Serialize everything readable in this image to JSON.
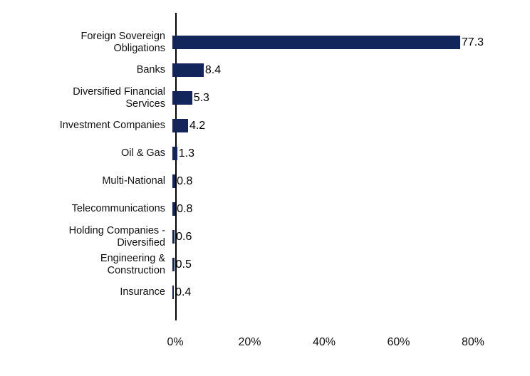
{
  "chart_data": {
    "type": "bar",
    "orientation": "horizontal",
    "title": "",
    "xlabel": "",
    "ylabel": "",
    "grid": false,
    "legend": "none",
    "bar_color": "#13265B",
    "categories": [
      "Foreign Sovereign Obligations",
      "Banks",
      "Diversified Financial Services",
      "Investment Companies",
      "Oil & Gas",
      "Multi-National",
      "Telecommunications",
      "Holding Companies - Diversified",
      "Engineering & Construction",
      "Insurance"
    ],
    "category_lines": [
      [
        "Foreign Sovereign",
        "Obligations"
      ],
      [
        "Banks"
      ],
      [
        "Diversified Financial",
        "Services"
      ],
      [
        "Investment Companies"
      ],
      [
        "Oil & Gas"
      ],
      [
        "Multi-National"
      ],
      [
        "Telecommunications"
      ],
      [
        "Holding Companies -",
        "Diversified"
      ],
      [
        "Engineering &",
        "Construction"
      ],
      [
        "Insurance"
      ]
    ],
    "values": [
      77.3,
      8.4,
      5.3,
      4.2,
      1.3,
      0.8,
      0.8,
      0.6,
      0.5,
      0.4
    ],
    "value_labels": [
      "77.3",
      "8.4",
      "5.3",
      "4.2",
      "1.3",
      "0.8",
      "0.8",
      "0.6",
      "0.5",
      "0.4"
    ],
    "x_ticks": [
      "0%",
      "20%",
      "40%",
      "60%",
      "80%"
    ],
    "x_tick_values": [
      0,
      20,
      40,
      60,
      80
    ],
    "xlim": [
      0,
      90
    ]
  }
}
